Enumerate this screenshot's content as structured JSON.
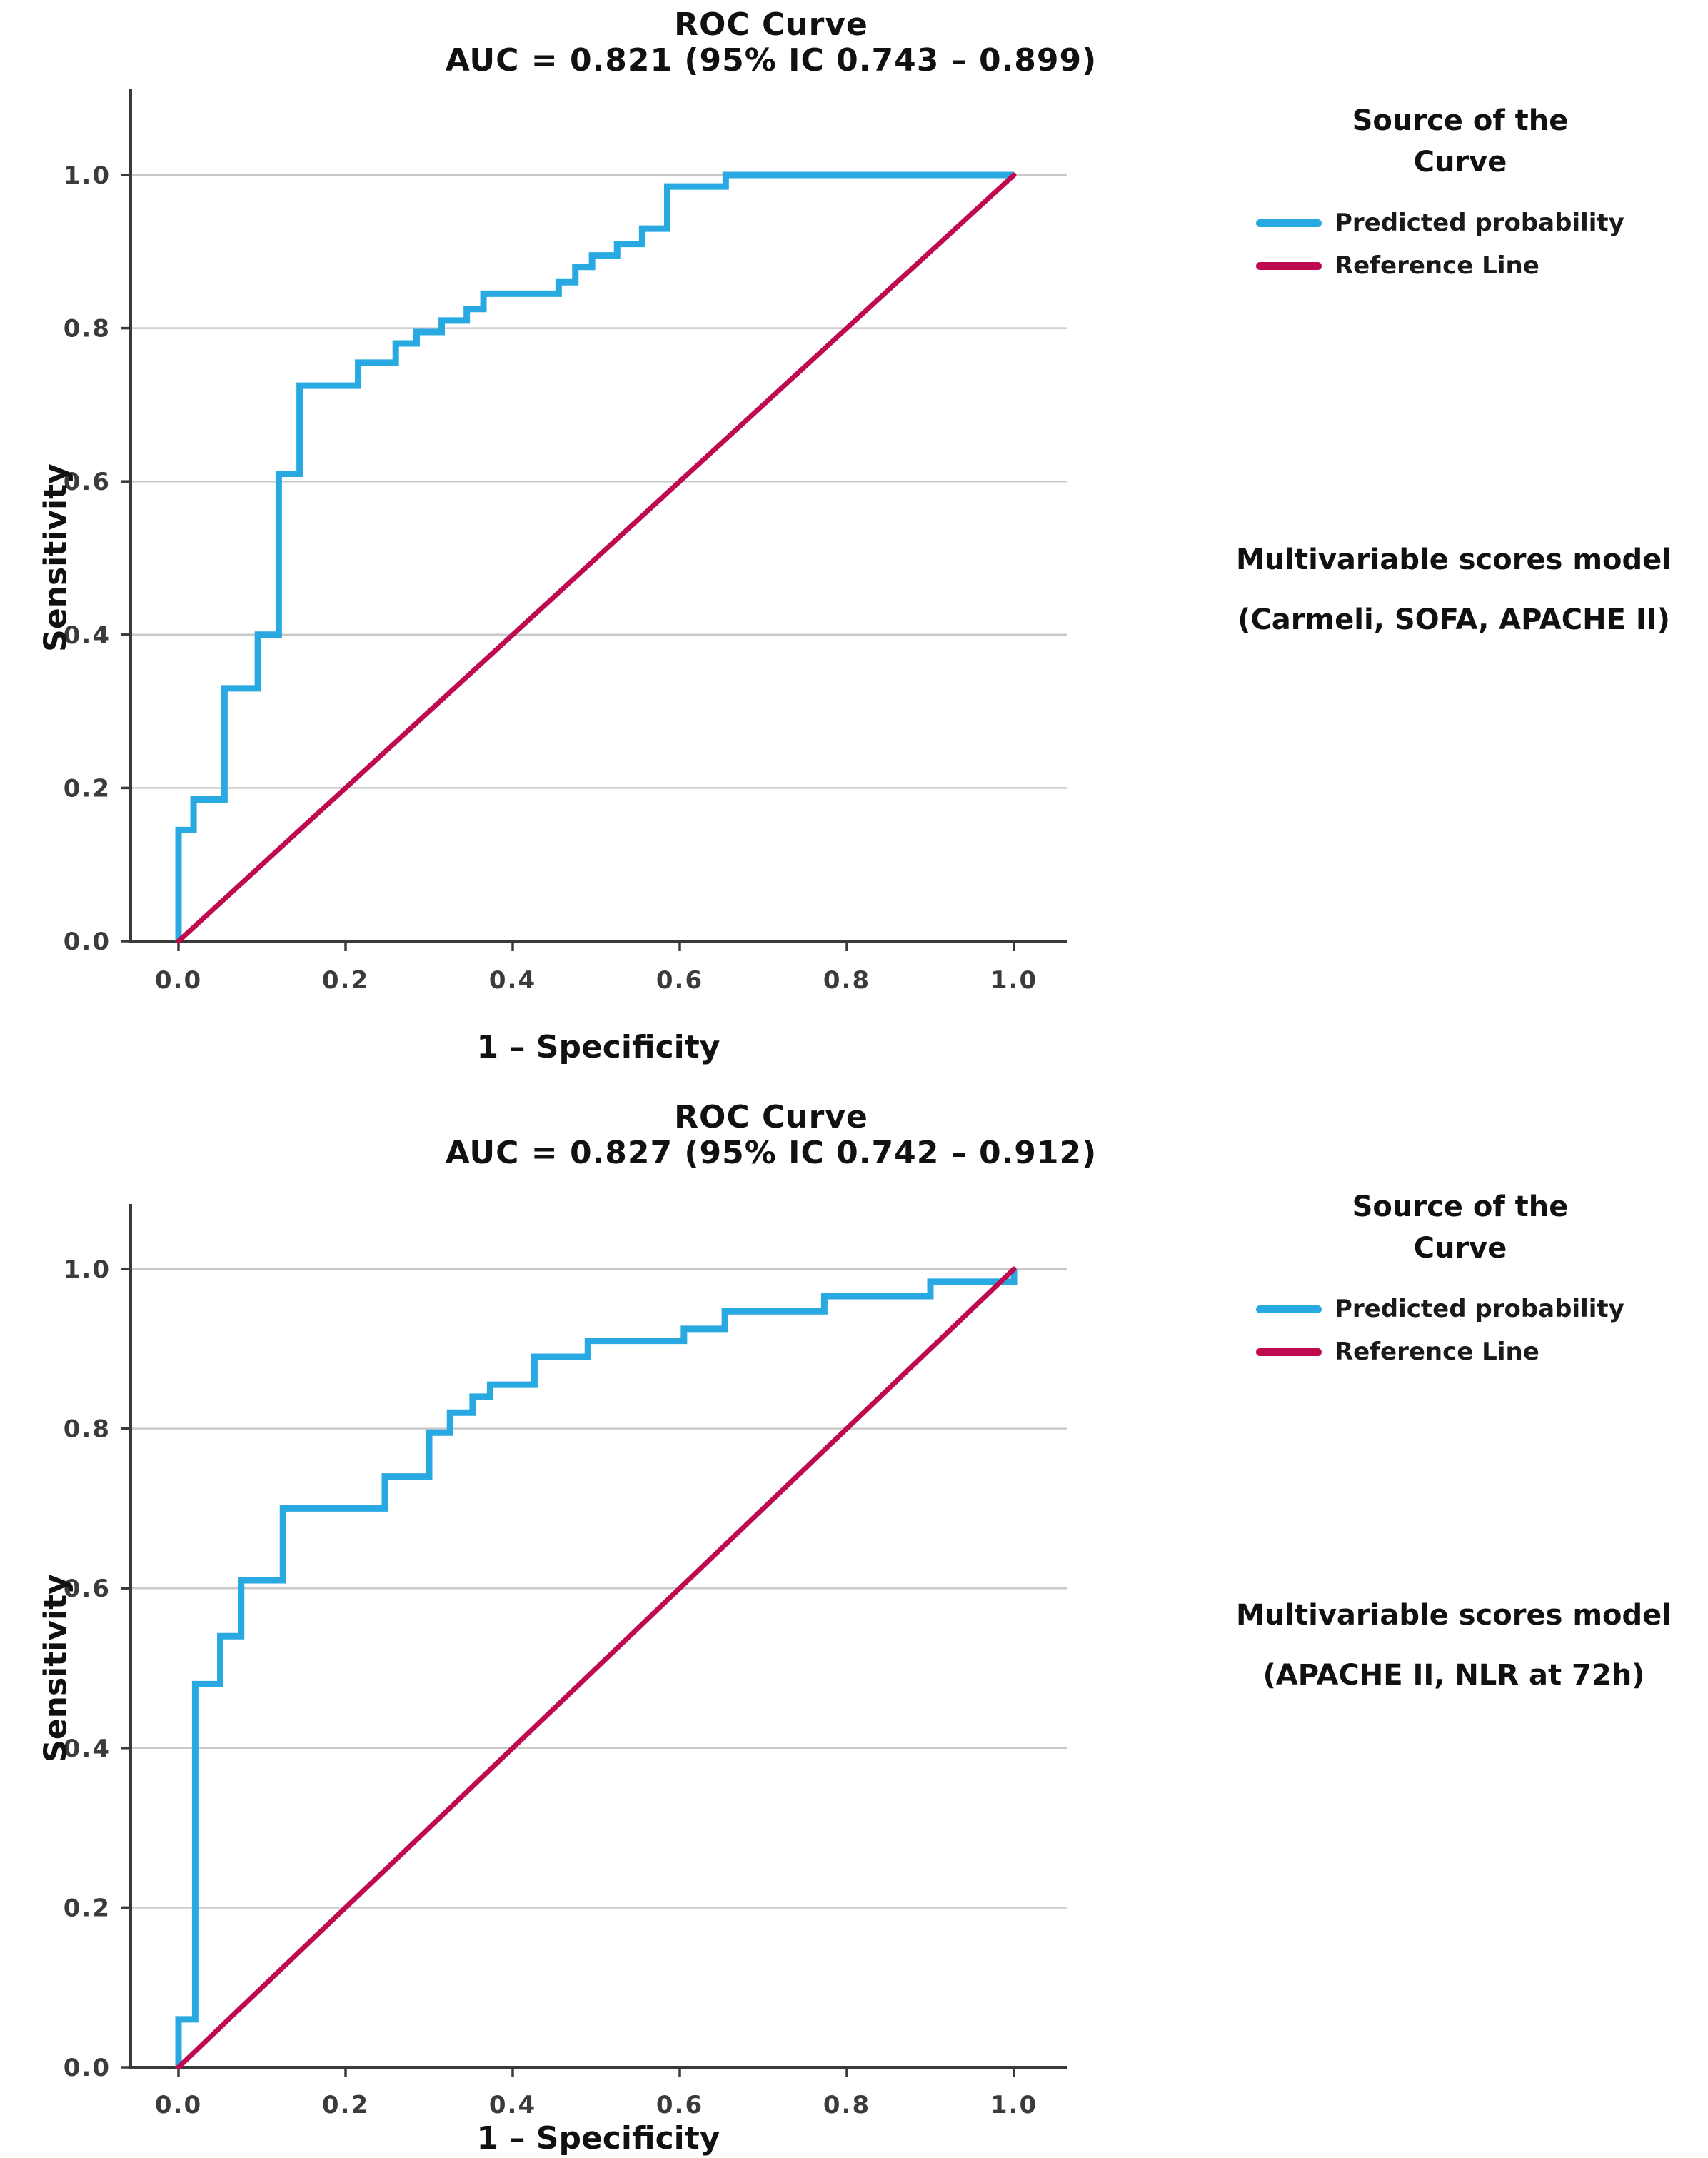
{
  "colors": {
    "roc_blue": "#29A9E1",
    "reference_crimson": "#C00A50",
    "axis": "#3a3a3a",
    "grid": "#c9c9c9",
    "tick_text": "#3b3b3b"
  },
  "chart_data": [
    {
      "type": "line",
      "title": "ROC Curve",
      "subtitle": "AUC = 0.821 (95% IC 0.743 – 0.899)",
      "xlabel": "1 – Specificity",
      "ylabel": "Sensitivity",
      "xlim": [
        0,
        1
      ],
      "ylim": [
        0,
        1
      ],
      "xticks": [
        "0.0",
        "0.2",
        "0.4",
        "0.6",
        "0.8",
        "1.0"
      ],
      "yticks": [
        "0.0",
        "0.2",
        "0.4",
        "0.6",
        "0.8",
        "1.0"
      ],
      "grid": "horizontal-only",
      "legend_position": "top-right",
      "legend_title_lines": [
        "Source of the",
        "Curve"
      ],
      "annotation_lines": [
        "Multivariable scores model",
        "(Carmeli, SOFA, APACHE II)"
      ],
      "series": [
        {
          "name": "Predicted probability",
          "color": "#29A9E1",
          "style": "step",
          "points": [
            [
              0,
              0
            ],
            [
              0,
              0.145
            ],
            [
              0.018,
              0.145
            ],
            [
              0.018,
              0.185
            ],
            [
              0.055,
              0.185
            ],
            [
              0.055,
              0.33
            ],
            [
              0.095,
              0.33
            ],
            [
              0.095,
              0.4
            ],
            [
              0.12,
              0.4
            ],
            [
              0.12,
              0.61
            ],
            [
              0.145,
              0.61
            ],
            [
              0.145,
              0.725
            ],
            [
              0.215,
              0.725
            ],
            [
              0.215,
              0.755
            ],
            [
              0.26,
              0.755
            ],
            [
              0.26,
              0.78
            ],
            [
              0.285,
              0.78
            ],
            [
              0.285,
              0.795
            ],
            [
              0.315,
              0.795
            ],
            [
              0.315,
              0.81
            ],
            [
              0.345,
              0.81
            ],
            [
              0.345,
              0.825
            ],
            [
              0.365,
              0.825
            ],
            [
              0.365,
              0.845
            ],
            [
              0.455,
              0.845
            ],
            [
              0.455,
              0.86
            ],
            [
              0.475,
              0.86
            ],
            [
              0.475,
              0.88
            ],
            [
              0.495,
              0.88
            ],
            [
              0.495,
              0.895
            ],
            [
              0.525,
              0.895
            ],
            [
              0.525,
              0.91
            ],
            [
              0.555,
              0.91
            ],
            [
              0.555,
              0.93
            ],
            [
              0.585,
              0.93
            ],
            [
              0.585,
              0.985
            ],
            [
              0.655,
              0.985
            ],
            [
              0.655,
              1.0
            ],
            [
              1.0,
              1.0
            ]
          ]
        },
        {
          "name": "Reference Line",
          "color": "#C00A50",
          "style": "straight",
          "points": [
            [
              0,
              0
            ],
            [
              1,
              1
            ]
          ]
        }
      ]
    },
    {
      "type": "line",
      "title": "ROC Curve",
      "subtitle": "AUC = 0.827 (95% IC 0.742 – 0.912)",
      "xlabel": "1 – Specificity",
      "ylabel": "Sensitivity",
      "xlim": [
        0,
        1
      ],
      "ylim": [
        0,
        1
      ],
      "xticks": [
        "0.0",
        "0.2",
        "0.4",
        "0.6",
        "0.8",
        "1.0"
      ],
      "yticks": [
        "0.0",
        "0.2",
        "0.4",
        "0.6",
        "0.8",
        "1.0"
      ],
      "grid": "horizontal-only",
      "legend_position": "top-right",
      "legend_title_lines": [
        "Source of the",
        "Curve"
      ],
      "annotation_lines": [
        "Multivariable scores model",
        "(APACHE II, NLR at 72h)"
      ],
      "series": [
        {
          "name": "Predicted probability",
          "color": "#29A9E1",
          "style": "step",
          "points": [
            [
              0,
              0
            ],
            [
              0,
              0.06
            ],
            [
              0.02,
              0.06
            ],
            [
              0.02,
              0.48
            ],
            [
              0.05,
              0.48
            ],
            [
              0.05,
              0.54
            ],
            [
              0.075,
              0.54
            ],
            [
              0.075,
              0.61
            ],
            [
              0.125,
              0.61
            ],
            [
              0.125,
              0.7
            ],
            [
              0.247,
              0.7
            ],
            [
              0.247,
              0.74
            ],
            [
              0.3,
              0.74
            ],
            [
              0.3,
              0.795
            ],
            [
              0.325,
              0.795
            ],
            [
              0.325,
              0.82
            ],
            [
              0.352,
              0.82
            ],
            [
              0.352,
              0.84
            ],
            [
              0.373,
              0.84
            ],
            [
              0.373,
              0.855
            ],
            [
              0.426,
              0.855
            ],
            [
              0.426,
              0.89
            ],
            [
              0.49,
              0.89
            ],
            [
              0.49,
              0.91
            ],
            [
              0.605,
              0.91
            ],
            [
              0.605,
              0.925
            ],
            [
              0.654,
              0.925
            ],
            [
              0.654,
              0.947
            ],
            [
              0.773,
              0.947
            ],
            [
              0.773,
              0.966
            ],
            [
              0.9,
              0.966
            ],
            [
              0.9,
              0.984
            ],
            [
              1.0,
              0.984
            ],
            [
              1.0,
              1.0
            ]
          ]
        },
        {
          "name": "Reference Line",
          "color": "#C00A50",
          "style": "straight",
          "points": [
            [
              0,
              0
            ],
            [
              1,
              1
            ]
          ]
        }
      ]
    }
  ]
}
